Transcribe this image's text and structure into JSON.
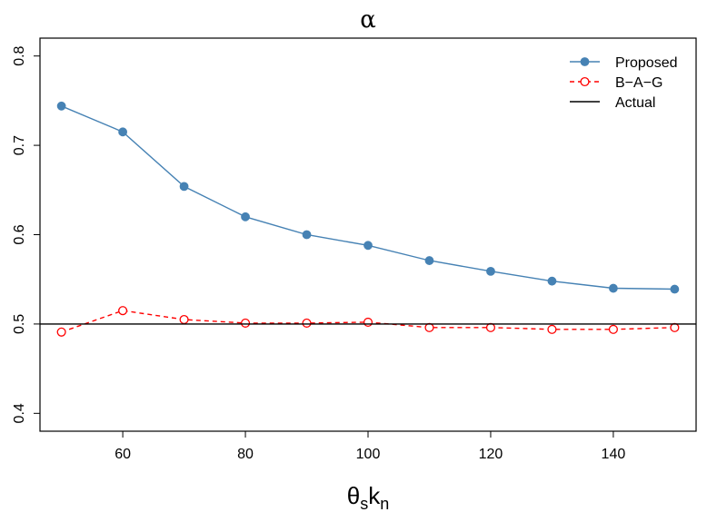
{
  "chart_data": {
    "type": "line",
    "title": "α",
    "xlabel": {
      "main1": "θ",
      "sub1": "s",
      "main2": "k",
      "sub2": "n"
    },
    "ylabel": "",
    "x": [
      50,
      60,
      70,
      80,
      90,
      100,
      110,
      120,
      130,
      140,
      150
    ],
    "xlim": [
      46.5,
      153.5
    ],
    "ylim": [
      0.38,
      0.82
    ],
    "xticks": [
      60,
      80,
      100,
      120,
      140
    ],
    "yticks": [
      0.4,
      0.5,
      0.6,
      0.7,
      0.8
    ],
    "xtick_labels": [
      "60",
      "80",
      "100",
      "120",
      "140"
    ],
    "ytick_labels": [
      "0.4",
      "0.5",
      "0.6",
      "0.7",
      "0.8"
    ],
    "legend_position": "top-right",
    "grid": false,
    "series": [
      {
        "name": "Proposed",
        "color": "#4682B4",
        "style": "solid",
        "marker": "filled-circle",
        "values": [
          0.744,
          0.715,
          0.654,
          0.62,
          0.6,
          0.588,
          0.571,
          0.559,
          0.548,
          0.54,
          0.539
        ]
      },
      {
        "name": "B−A−G",
        "color": "#FF0000",
        "style": "dashed",
        "marker": "open-circle",
        "values": [
          0.491,
          0.515,
          0.505,
          0.501,
          0.501,
          0.502,
          0.496,
          0.496,
          0.494,
          0.494,
          0.496
        ]
      },
      {
        "name": "Actual",
        "color": "#000000",
        "style": "solid",
        "marker": "none",
        "hline": 0.5
      }
    ]
  }
}
